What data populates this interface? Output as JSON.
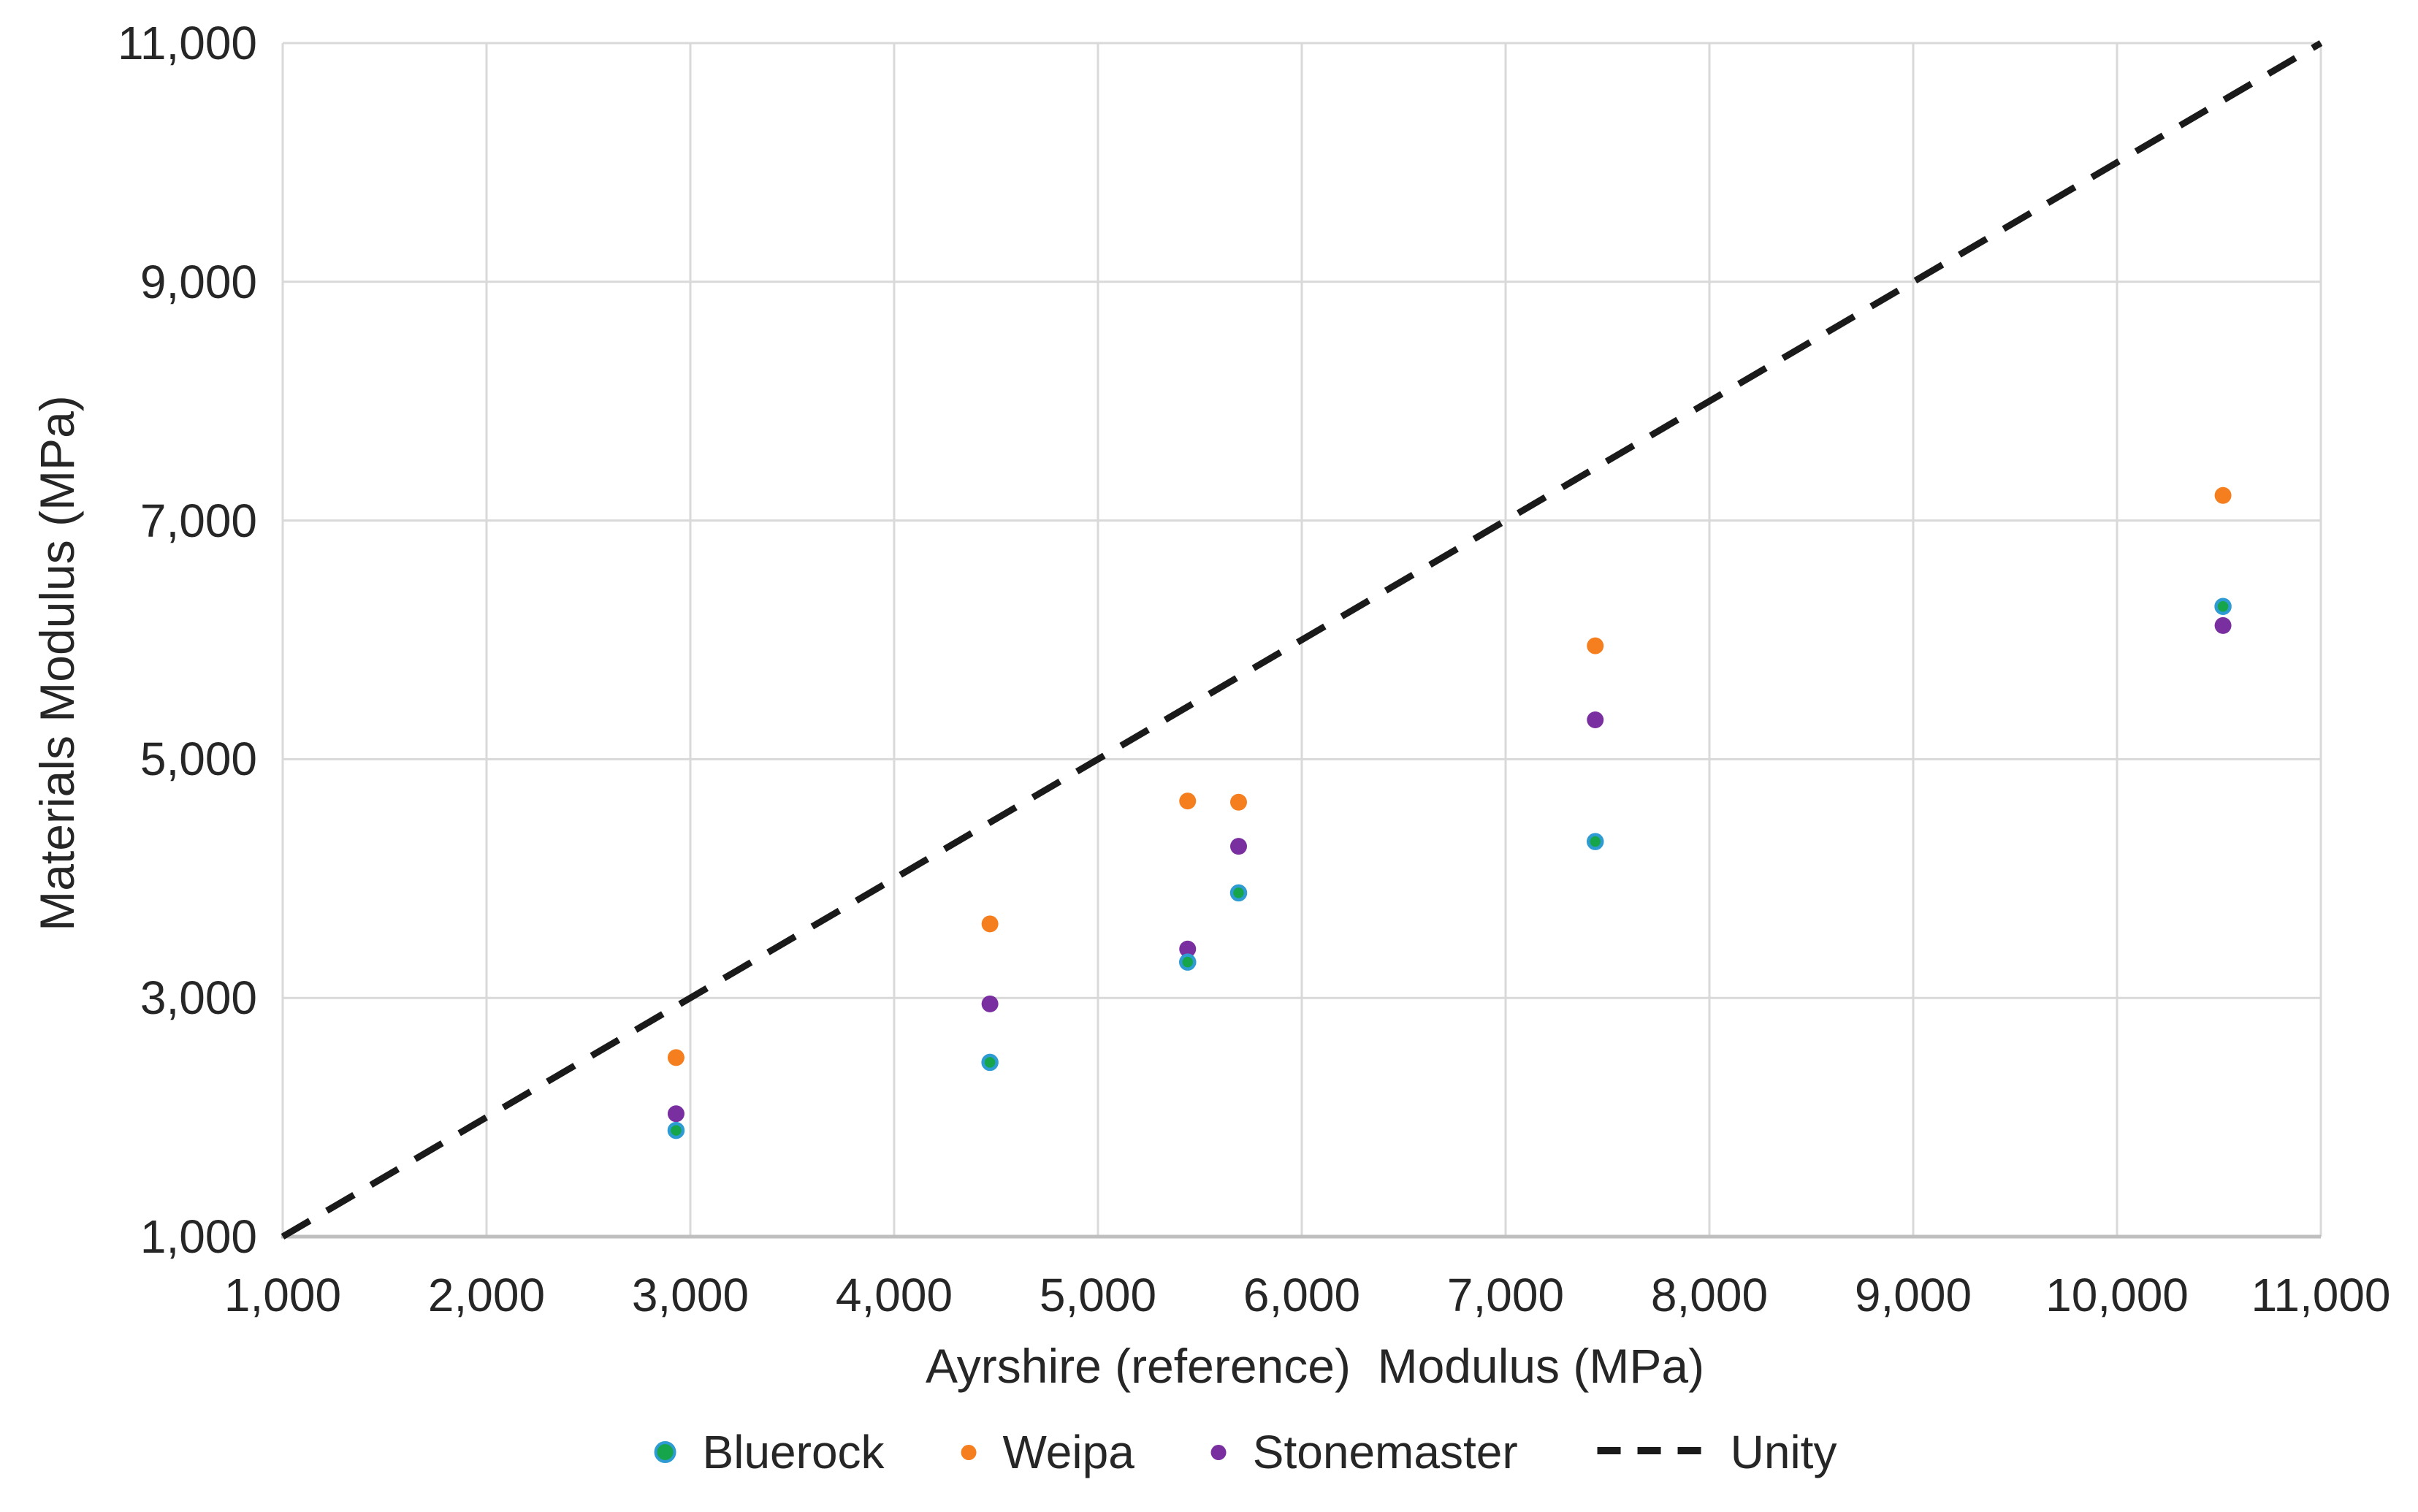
{
  "figure": {
    "background": "#FFFFFF",
    "description": "Scatter chart comparing materials modulus against Ayrshire reference modulus with a dashed unity line"
  },
  "axes": {
    "x": {
      "title": "Ayrshire (reference)  Modulus (MPa)",
      "tick_labels": [
        "1,000",
        "2,000",
        "3,000",
        "4,000",
        "5,000",
        "6,000",
        "7,000",
        "8,000",
        "9,000",
        "10,000",
        "11,000"
      ]
    },
    "y": {
      "title": "Materials Modulus (MPa)",
      "tick_labels": [
        "1,000",
        "3,000",
        "5,000",
        "7,000",
        "9,000",
        "11,000"
      ]
    }
  },
  "legend": {
    "items": [
      {
        "label": "Bluerock",
        "marker": "dot",
        "color": "#17A54B",
        "ring": "#2E9BD3"
      },
      {
        "label": "Weipa",
        "marker": "dot",
        "color": "#F57E1F"
      },
      {
        "label": "Stonemaster",
        "marker": "dot",
        "color": "#7A2FA0"
      },
      {
        "label": "Unity",
        "marker": "dash",
        "color": "#1A1A1A"
      }
    ]
  },
  "colors": {
    "gridline": "#D9D9D9",
    "axis_line": "#BFBFBF",
    "text": "#262626",
    "background": "#FFFFFF",
    "bluerock_fill": "#17A54B",
    "bluerock_ring": "#2E9BD3",
    "weipa": "#F57E1F",
    "stonemaster": "#7A2FA0",
    "unity": "#1A1A1A"
  },
  "chart_data": {
    "type": "scatter",
    "title": "",
    "xlabel": "Ayrshire (reference) Modulus (MPa)",
    "ylabel": "Materials Modulus (MPa)",
    "xlim": [
      1000,
      11000
    ],
    "ylim": [
      1000,
      11000
    ],
    "x_ticks": [
      1000,
      2000,
      3000,
      4000,
      5000,
      6000,
      7000,
      8000,
      9000,
      10000,
      11000
    ],
    "y_ticks": [
      1000,
      3000,
      5000,
      7000,
      9000,
      11000
    ],
    "grid": {
      "vertical_every": 1000,
      "horizontal_every": 2000,
      "gridlines_on": true
    },
    "legend_position": "bottom",
    "series": [
      {
        "name": "Bluerock",
        "type": "scatter",
        "color": "#17A54B",
        "ring_color": "#2E9BD3",
        "points": [
          [
            2930,
            1890
          ],
          [
            4470,
            2460
          ],
          [
            5440,
            3300
          ],
          [
            5690,
            3880
          ],
          [
            7440,
            4310
          ],
          [
            10520,
            6280
          ]
        ]
      },
      {
        "name": "Weipa",
        "type": "scatter",
        "color": "#F57E1F",
        "points": [
          [
            2930,
            2500
          ],
          [
            4470,
            3620
          ],
          [
            5440,
            4650
          ],
          [
            5690,
            4640
          ],
          [
            7440,
            5950
          ],
          [
            10520,
            7210
          ]
        ]
      },
      {
        "name": "Stonemaster",
        "type": "scatter",
        "color": "#7A2FA0",
        "points": [
          [
            2930,
            2030
          ],
          [
            4470,
            2950
          ],
          [
            5440,
            3410
          ],
          [
            5690,
            4270
          ],
          [
            7440,
            5330
          ],
          [
            10520,
            6120
          ]
        ]
      },
      {
        "name": "Unity",
        "type": "line",
        "style": "dashed",
        "color": "#1A1A1A",
        "points": [
          [
            1000,
            1000
          ],
          [
            11000,
            11000
          ]
        ]
      }
    ]
  }
}
